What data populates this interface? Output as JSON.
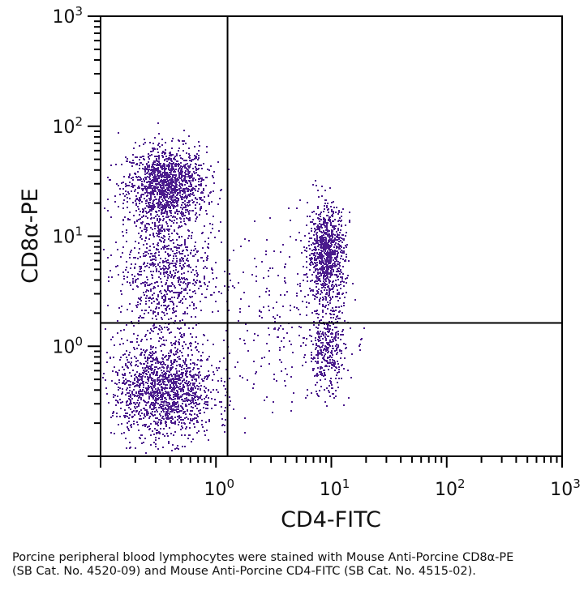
{
  "chart_data": {
    "type": "scatter",
    "xlabel": "CD4-FITC",
    "ylabel": "CD8α-PE",
    "xscale": "log",
    "yscale": "log",
    "xlim": [
      0.1,
      1000
    ],
    "ylim": [
      0.1,
      1000
    ],
    "x_ticks": [
      {
        "base": "10",
        "exp": "0",
        "value": 1
      },
      {
        "base": "10",
        "exp": "1",
        "value": 10
      },
      {
        "base": "10",
        "exp": "2",
        "value": 100
      },
      {
        "base": "10",
        "exp": "3",
        "value": 1000
      }
    ],
    "y_ticks": [
      {
        "base": "10",
        "exp": "0",
        "value": 1
      },
      {
        "base": "10",
        "exp": "1",
        "value": 10
      },
      {
        "base": "10",
        "exp": "2",
        "value": 100
      },
      {
        "base": "10",
        "exp": "3",
        "value": 1000
      }
    ],
    "grid": false,
    "legend": "none",
    "quadrant_gates": {
      "x": 1.26,
      "y": 1.63
    },
    "point_color": "#4a1a8c",
    "populations": [
      {
        "x_center": 0.37,
        "y_center": 30,
        "x_spread_decades": 0.17,
        "y_spread_decades": 0.17,
        "count": 1300
      },
      {
        "x_center": 0.35,
        "y_center": 5,
        "x_spread_decades": 0.2,
        "y_spread_decades": 0.35,
        "count": 900
      },
      {
        "x_center": 0.35,
        "y_center": 0.4,
        "x_spread_decades": 0.22,
        "y_spread_decades": 0.22,
        "count": 1500
      },
      {
        "x_center": 9,
        "y_center": 7,
        "x_spread_decades": 0.08,
        "y_spread_decades": 0.22,
        "count": 900
      },
      {
        "x_center": 9,
        "y_center": 0.9,
        "x_spread_decades": 0.08,
        "y_spread_decades": 0.2,
        "count": 350
      },
      {
        "x_center": 4,
        "y_center": 2,
        "x_spread_decades": 0.3,
        "y_spread_decades": 0.4,
        "count": 220
      }
    ]
  },
  "caption": "Porcine peripheral blood lymphocytes were stained with Mouse Anti-Porcine CD8α-PE (SB Cat. No. 4520-09) and Mouse Anti-Porcine CD4-FITC (SB Cat. No. 4515-02)."
}
